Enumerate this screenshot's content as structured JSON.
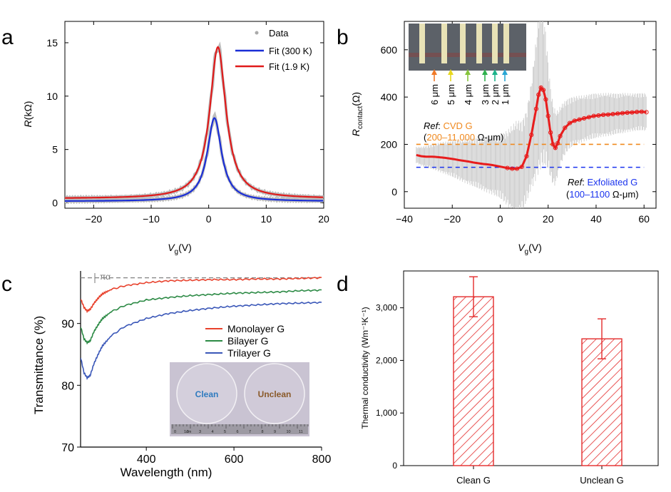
{
  "panels": {
    "a": {
      "label": "a",
      "chart_data": {
        "type": "line",
        "xlabel_var": "V",
        "xlabel_sub": "g",
        "xlabel_unit": "(V)",
        "ylabel_var": "R",
        "ylabel_unit": "(kΩ)",
        "xlim": [
          -25,
          20
        ],
        "ylim": [
          -0.5,
          17
        ],
        "xticks": [
          -20,
          -10,
          0,
          10,
          20
        ],
        "yticks": [
          0,
          5,
          10,
          15
        ],
        "xtick_labels": [
          "−20",
          "−10",
          "0",
          "10",
          "20"
        ],
        "ytick_labels": [
          "0",
          "5",
          "10",
          "15"
        ],
        "legend": [
          "Data",
          "Fit (300 K)",
          "Fit (1.9 K)"
        ],
        "series": [
          {
            "name": "Fit (300 K)",
            "color": "#1a2ed6",
            "peak_x": 1.0,
            "peak_y": 7.95,
            "width": 3.0,
            "baseline": 0.15,
            "x": [
              -25,
              -20,
              -15,
              -10,
              -7,
              -5,
              -3,
              -2,
              -1,
              0,
              0.5,
              1,
              1.5,
              2,
              3,
              4,
              5,
              7,
              10,
              15,
              20
            ],
            "y": [
              0.45,
              0.6,
              0.8,
              1.15,
              1.6,
              2.1,
              3.1,
              3.9,
              5.0,
              6.5,
              7.4,
              7.95,
              7.7,
              7.0,
              5.2,
              3.8,
              2.9,
              2.0,
              1.4,
              0.9,
              0.6
            ]
          },
          {
            "name": "Fit (1.9 K)",
            "color": "#e01a1a",
            "peak_x": 1.6,
            "peak_y": 14.6,
            "width": 3.4,
            "baseline": 0.4,
            "x": [
              -25,
              -20,
              -15,
              -10,
              -7,
              -5,
              -3,
              -2,
              -1,
              0,
              1,
              1.6,
              2,
              3,
              4,
              5,
              7,
              10,
              15,
              20
            ],
            "y": [
              0.7,
              0.95,
              1.3,
              1.95,
              2.8,
              3.8,
              5.6,
              7.0,
              8.9,
              11.3,
              13.9,
              14.6,
              14.4,
              12.3,
              9.3,
              7.0,
              4.4,
              2.9,
              1.7,
              1.05
            ]
          }
        ]
      }
    },
    "b": {
      "label": "b",
      "chart_data": {
        "type": "scatter",
        "xlabel_var": "V",
        "xlabel_sub": "g",
        "xlabel_unit": "(V)",
        "ylabel_var": "R",
        "ylabel_sub": "contact",
        "ylabel_unit": "(Ω)",
        "xlim": [
          -40,
          65
        ],
        "ylim": [
          -70,
          720
        ],
        "xticks": [
          -40,
          -20,
          0,
          20,
          40,
          60
        ],
        "yticks": [
          0,
          200,
          400,
          600
        ],
        "xtick_labels": [
          "−40",
          "−20",
          "0",
          "20",
          "40",
          "60"
        ],
        "ytick_labels": [
          "0",
          "200",
          "400",
          "600"
        ],
        "x": [
          -35,
          -33,
          -31,
          -29,
          -27,
          -25,
          -23,
          -21,
          -19,
          -17,
          -15,
          -13,
          -11,
          -9,
          -7,
          -5,
          -3,
          -1,
          1,
          3,
          5,
          7,
          9,
          11,
          13,
          15,
          16,
          17,
          18,
          19,
          20,
          21,
          22,
          23,
          24,
          25,
          27,
          29,
          31,
          33,
          35,
          37,
          39,
          41,
          43,
          45,
          47,
          49,
          51,
          53,
          55,
          57,
          59,
          61
        ],
        "y": [
          155,
          150,
          148,
          148,
          147,
          145,
          143,
          140,
          137,
          133,
          130,
          127,
          123,
          120,
          117,
          115,
          112,
          108,
          104,
          100,
          97,
          97,
          105,
          150,
          240,
          350,
          410,
          440,
          430,
          390,
          320,
          250,
          200,
          185,
          205,
          235,
          270,
          290,
          300,
          305,
          310,
          315,
          320,
          322,
          325,
          326,
          328,
          330,
          332,
          334,
          335,
          337,
          338,
          336
        ],
        "err": [
          30,
          35,
          40,
          45,
          50,
          55,
          60,
          65,
          70,
          75,
          80,
          85,
          90,
          95,
          100,
          105,
          110,
          115,
          125,
          140,
          160,
          180,
          170,
          170,
          200,
          260,
          290,
          300,
          280,
          250,
          200,
          170,
          150,
          140,
          120,
          110,
          100,
          95,
          90,
          88,
          85,
          85,
          85,
          82,
          80,
          80,
          78,
          75,
          75,
          72,
          70,
          70,
          70,
          70
        ],
        "ref_lines": [
          {
            "name": "CVD G",
            "value": 200,
            "color": "#f0891e",
            "ref_label": "Ref",
            "sep": ": ",
            "text": "CVD G",
            "range_text": "200–11,000",
            "unit": " Ω-μm)"
          },
          {
            "name": "Exfoliated G",
            "value": 103,
            "color": "#1a33ee",
            "ref_label": "Ref",
            "sep": ": ",
            "text": "Exfoliated G",
            "range_text": "100–1100",
            "unit": " Ω-μm)"
          }
        ],
        "inset": {
          "labels": [
            "6 μm",
            "5 μm",
            "4 μm",
            "3 μm",
            "2 μm",
            "1 μm"
          ],
          "arrow_colors": [
            "#f07a28",
            "#e8d81e",
            "#86c43c",
            "#2fb14d",
            "#1db38a",
            "#29a6d4"
          ]
        }
      }
    },
    "c": {
      "label": "c",
      "chart_data": {
        "type": "line",
        "xlabel": "Wavelength (nm)",
        "ylabel": "Transmittance (%)",
        "xlim": [
          250,
          800
        ],
        "ylim": [
          70,
          98.5
        ],
        "xticks": [
          400,
          600,
          800
        ],
        "yticks": [
          70,
          80,
          90
        ],
        "xtick_labels": [
          "400",
          "600",
          "800"
        ],
        "ytick_labels": [
          "70",
          "80",
          "90"
        ],
        "annotation": "πα",
        "reference_line": 97.4,
        "series": [
          {
            "name": "Monolayer G",
            "color": "#e8412c",
            "x": [
              250,
              258,
              265,
              272,
              280,
              290,
              300,
              320,
              350,
              400,
              450,
              500,
              550,
              600,
              650,
              700,
              750,
              800
            ],
            "y": [
              94.0,
              92.6,
              92.0,
              92.3,
              93.2,
              94.1,
              94.8,
              95.5,
              96.1,
              96.6,
              96.9,
              97.0,
              97.1,
              97.1,
              97.2,
              97.2,
              97.3,
              97.4
            ]
          },
          {
            "name": "Bilayer G",
            "color": "#2c8a45",
            "x": [
              250,
              258,
              265,
              272,
              280,
              290,
              300,
              320,
              350,
              400,
              450,
              500,
              550,
              600,
              650,
              700,
              750,
              800
            ],
            "y": [
              89.5,
              87.5,
              86.9,
              87.2,
              88.6,
              89.8,
              90.8,
              91.9,
              92.9,
              93.8,
              94.2,
              94.5,
              94.7,
              94.9,
              95.0,
              95.1,
              95.3,
              95.4
            ]
          },
          {
            "name": "Trilayer G",
            "color": "#3a57b8",
            "x": [
              250,
              258,
              265,
              272,
              280,
              290,
              300,
              320,
              350,
              400,
              450,
              500,
              550,
              600,
              650,
              700,
              750,
              800
            ],
            "y": [
              84.5,
              82.0,
              81.2,
              81.6,
              83.4,
              85.0,
              86.4,
              88.0,
              89.5,
              90.8,
              91.6,
              92.1,
              92.5,
              92.8,
              93.0,
              93.2,
              93.3,
              93.4
            ]
          }
        ],
        "legend": [
          "Monolayer G",
          "Bilayer G",
          "Trilayer G"
        ],
        "inset": {
          "left_label": "Clean",
          "right_label": "Unclean",
          "ruler_unit": "1cm",
          "ruler_numbers": [
            "0",
            "2",
            "3",
            "4",
            "5",
            "6",
            "7",
            "8",
            "9",
            "10",
            "11"
          ]
        }
      }
    },
    "d": {
      "label": "d",
      "chart_data": {
        "type": "bar",
        "ylabel": "Thermal conductivity (Wm⁻¹K⁻¹)",
        "ylim": [
          0,
          3700
        ],
        "yticks": [
          0,
          1000,
          2000,
          3000
        ],
        "ytick_labels": [
          "0",
          "1,000",
          "2,000",
          "3,000"
        ],
        "categories": [
          "Clean G",
          "Unclean G"
        ],
        "values": [
          3210,
          2410
        ],
        "errors": [
          380,
          380
        ],
        "bar_color": "#e32b2b"
      }
    }
  }
}
